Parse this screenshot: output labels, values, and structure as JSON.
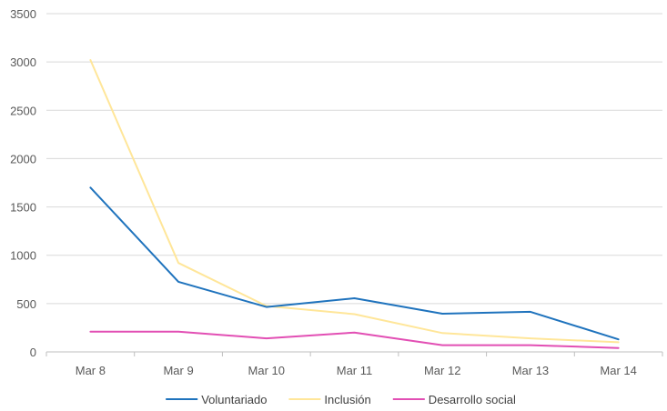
{
  "chart_data": {
    "type": "line",
    "title": "",
    "xlabel": "",
    "ylabel": "",
    "categories": [
      "Mar 8",
      "Mar 9",
      "Mar 10",
      "Mar 11",
      "Mar 12",
      "Mar 13",
      "Mar 14"
    ],
    "ylim": [
      0,
      3500
    ],
    "yticks": [
      0,
      500,
      1000,
      1500,
      2000,
      2500,
      3000,
      3500
    ],
    "grid": true,
    "legend_position": "bottom",
    "series": [
      {
        "name": "Voluntariado",
        "color": "#1f73bd",
        "values": [
          1700,
          725,
          465,
          555,
          395,
          415,
          130
        ]
      },
      {
        "name": "Inclusión",
        "color": "#ffe699",
        "values": [
          3020,
          920,
          475,
          390,
          195,
          140,
          100
        ]
      },
      {
        "name": "Desarrollo social",
        "color": "#e24fb4",
        "values": [
          210,
          210,
          140,
          200,
          70,
          70,
          40
        ]
      }
    ]
  }
}
